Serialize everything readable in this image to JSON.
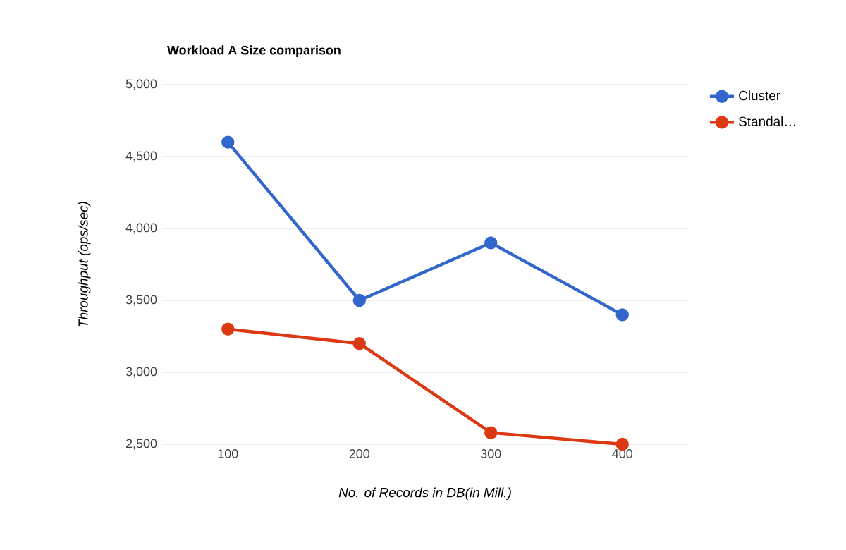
{
  "chart_data": {
    "type": "line",
    "title": "Workload A Size comparison",
    "xlabel": "No. of Records in DB(in Mill.)",
    "ylabel": "Throughput (ops/sec)",
    "categories": [
      "100",
      "200",
      "300",
      "400"
    ],
    "series": [
      {
        "name": "Cluster",
        "color": "#3366cc",
        "values": [
          4600,
          3500,
          3900,
          3400
        ]
      },
      {
        "name": "Standal…",
        "color": "#dc3912",
        "values": [
          3300,
          3200,
          2580,
          2500
        ]
      }
    ],
    "ylim": [
      2500,
      5000
    ],
    "yticks": [
      {
        "value": 2500,
        "label": "2,500"
      },
      {
        "value": 3000,
        "label": "3,000"
      },
      {
        "value": 3500,
        "label": "3,500"
      },
      {
        "value": 4000,
        "label": "4,000"
      },
      {
        "value": 4500,
        "label": "4,500"
      },
      {
        "value": 5000,
        "label": "5,000"
      }
    ],
    "grid": "y",
    "legend": "right",
    "marker": "circle",
    "line_style": "solid"
  }
}
